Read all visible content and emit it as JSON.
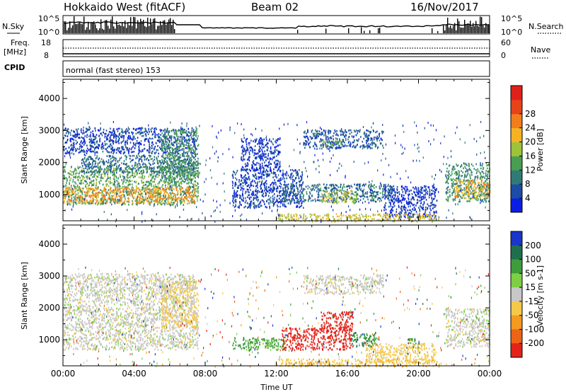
{
  "header": {
    "title": "Hokkaido West (fitACF)",
    "beam": "Beam 02",
    "date": "16/Nov/2017"
  },
  "status_panel": {
    "nsky_label": "N.Sky",
    "nsky_ticks": [
      "10^5",
      "10^0"
    ],
    "nsearch_label": "N.Search",
    "nsearch_ticks": [
      "10^5",
      "10^0"
    ],
    "freq_label": "Freq.",
    "freq_unit": "[MHz]",
    "freq_ticks": [
      "18",
      "8"
    ],
    "nave_label": "Nave",
    "nave_ticks": [
      "60",
      "0"
    ],
    "cpid_label": "CPID",
    "cpid_text": "normal (fast stereo) 153"
  },
  "chart_data": [
    {
      "type": "heatmap",
      "panel": "power",
      "ylabel": "Slant Range [km]",
      "xlabel": "",
      "ylim": [
        180,
        4600
      ],
      "yticks": [
        1000,
        2000,
        3000,
        4000
      ],
      "xlim": [
        0,
        24
      ],
      "xticks": [
        "00:00",
        "04:00",
        "08:00",
        "12:00",
        "16:00",
        "20:00",
        "00:00"
      ],
      "colorbar": {
        "label": "Power [dB]",
        "ticks": [
          "4",
          "8",
          "12",
          "16",
          "20",
          "24",
          "28"
        ],
        "colors": [
          "#0a1de6",
          "#1c4ca6",
          "#2f7a77",
          "#4a9e52",
          "#9fc23a",
          "#f5b324",
          "#f17d1d",
          "#e64319",
          "#e0211a"
        ]
      },
      "regions": [
        {
          "t0": 0.0,
          "t1": 7.6,
          "r0": 700,
          "r1": 1900,
          "p": 14
        },
        {
          "t0": 0.0,
          "t1": 7.4,
          "r0": 750,
          "r1": 1250,
          "p": 24
        },
        {
          "t0": 1.0,
          "t1": 7.4,
          "r0": 1700,
          "r1": 2250,
          "p": 9
        },
        {
          "t0": 0.0,
          "t1": 7.5,
          "r0": 2300,
          "r1": 3100,
          "p": 5
        },
        {
          "t0": 5.5,
          "t1": 7.6,
          "r0": 1400,
          "r1": 3050,
          "p": 12
        },
        {
          "t0": 9.5,
          "t1": 13.5,
          "r0": 600,
          "r1": 1800,
          "p": 5
        },
        {
          "t0": 10.0,
          "t1": 12.2,
          "r0": 1800,
          "r1": 2800,
          "p": 4
        },
        {
          "t0": 12.3,
          "t1": 18.5,
          "r0": 800,
          "r1": 1350,
          "p": 9
        },
        {
          "t0": 13.5,
          "t1": 18.0,
          "r0": 2450,
          "r1": 3050,
          "p": 7
        },
        {
          "t0": 14.5,
          "t1": 16.5,
          "r0": 750,
          "r1": 1150,
          "p": 18
        },
        {
          "t0": 14.5,
          "t1": 15.8,
          "r0": 2500,
          "r1": 2700,
          "p": 15
        },
        {
          "t0": 18.0,
          "t1": 21.0,
          "r0": 300,
          "r1": 1300,
          "p": 4
        },
        {
          "t0": 12.0,
          "t1": 21.2,
          "r0": 180,
          "r1": 420,
          "p": 20
        },
        {
          "t0": 21.5,
          "t1": 24.0,
          "r0": 800,
          "r1": 2000,
          "p": 12
        },
        {
          "t0": 22.0,
          "t1": 24.0,
          "r0": 900,
          "r1": 1500,
          "p": 22
        }
      ]
    },
    {
      "type": "heatmap",
      "panel": "velocity",
      "ylabel": "Slant Range [km]",
      "xlabel": "Time UT",
      "ylim": [
        180,
        4600
      ],
      "yticks": [
        1000,
        2000,
        3000,
        4000
      ],
      "xlim": [
        0,
        24
      ],
      "xticks": [
        "00:00",
        "04:00",
        "08:00",
        "12:00",
        "16:00",
        "20:00",
        "00:00"
      ],
      "colorbar": {
        "label": "Velocity [m s-1]",
        "ticks": [
          "200",
          "100",
          "50",
          "15",
          "-15",
          "-50",
          "-100",
          "-200"
        ],
        "colors": [
          "#1a35c9",
          "#1f6f4e",
          "#3e9c3d",
          "#7ed043",
          "#c7c7c7",
          "#f5c84a",
          "#f39a1f",
          "#ed6417",
          "#e3231a"
        ]
      },
      "regions": [
        {
          "t0": 0.0,
          "t1": 7.6,
          "r0": 700,
          "r1": 1900,
          "v": 0
        },
        {
          "t0": 5.5,
          "t1": 7.6,
          "r0": 1400,
          "r1": 2900,
          "v": -30
        },
        {
          "t0": 0.0,
          "t1": 7.4,
          "r0": 1900,
          "r1": 3100,
          "v": 0
        },
        {
          "t0": 9.5,
          "t1": 12.5,
          "r0": 700,
          "r1": 1100,
          "v": 40
        },
        {
          "t0": 12.3,
          "t1": 16.2,
          "r0": 700,
          "r1": 1400,
          "v": -180
        },
        {
          "t0": 14.5,
          "t1": 16.3,
          "r0": 1300,
          "r1": 1900,
          "v": -200
        },
        {
          "t0": 16.2,
          "t1": 17.6,
          "r0": 800,
          "r1": 1250,
          "v": 70
        },
        {
          "t0": 19.3,
          "t1": 20.0,
          "r0": 750,
          "r1": 1050,
          "v": 60
        },
        {
          "t0": 13.5,
          "t1": 18.0,
          "r0": 2450,
          "r1": 3050,
          "v": 0
        },
        {
          "t0": 17.0,
          "t1": 21.0,
          "r0": 300,
          "r1": 900,
          "v": -30
        },
        {
          "t0": 12.0,
          "t1": 21.2,
          "r0": 180,
          "r1": 420,
          "v": -40
        },
        {
          "t0": 21.5,
          "t1": 24.0,
          "r0": 800,
          "r1": 2000,
          "v": 0
        }
      ]
    }
  ]
}
